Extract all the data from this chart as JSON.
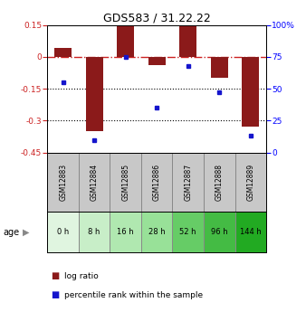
{
  "title": "GDS583 / 31.22.22",
  "samples": [
    "GSM12883",
    "GSM12884",
    "GSM12885",
    "GSM12886",
    "GSM12887",
    "GSM12888",
    "GSM12889"
  ],
  "ages": [
    "0 h",
    "8 h",
    "16 h",
    "28 h",
    "52 h",
    "96 h",
    "144 h"
  ],
  "log_ratios": [
    0.04,
    -0.35,
    0.15,
    -0.04,
    0.15,
    -0.1,
    -0.33
  ],
  "percentile_ranks": [
    55,
    10,
    75,
    35,
    68,
    47,
    13
  ],
  "bar_color": "#8B1A1A",
  "dot_color": "#1515CC",
  "ylim_left": [
    -0.45,
    0.15
  ],
  "ylim_right": [
    0,
    100
  ],
  "yticks_left": [
    0.15,
    0,
    -0.15,
    -0.3,
    -0.45
  ],
  "yticks_right": [
    100,
    75,
    50,
    25,
    0
  ],
  "ytick_labels_left": [
    "0.15",
    "0",
    "-0.15",
    "-0.3",
    "-0.45"
  ],
  "ytick_labels_right": [
    "100%",
    "75",
    "50",
    "25",
    "0"
  ],
  "age_colors": [
    "#e0f5e0",
    "#c8eec8",
    "#b0e8b0",
    "#98e198",
    "#66cc66",
    "#44bb44",
    "#22aa22"
  ],
  "legend_log_ratio": "log ratio",
  "legend_percentile": "percentile rank within the sample",
  "hline_zero_color": "#cc2222",
  "background_color": "white",
  "sample_box_color": "#c8c8c8",
  "sample_box_border": "#888888"
}
